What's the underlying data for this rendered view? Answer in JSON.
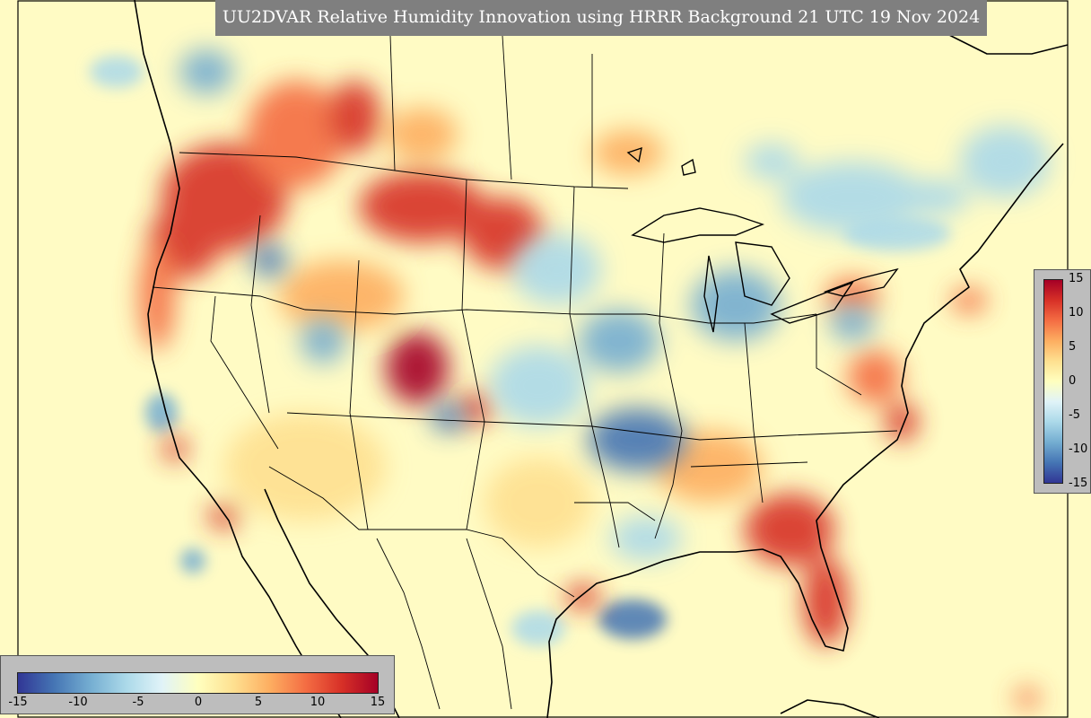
{
  "title": "UU2DVAR Relative Humidity Innovation using HRRR Background 21 UTC 19 Nov 2024",
  "colormap": {
    "name": "RdYlBu_r",
    "range": [
      -15,
      15
    ],
    "stops": [
      "#313695",
      "#4575b4",
      "#74add1",
      "#abd9e9",
      "#e0f3f8",
      "#ffffbf",
      "#fee090",
      "#fdae61",
      "#f46d43",
      "#d73027",
      "#a50026"
    ]
  },
  "right_colorbar": {
    "ticks": [
      "15",
      "10",
      "5",
      "0",
      "-5",
      "-10",
      "-15"
    ]
  },
  "bottom_colorbar": {
    "ticks": [
      "-15",
      "-10",
      "-5",
      "0",
      "5",
      "10",
      "15"
    ]
  },
  "colors": {
    "background_field": "#fffbc4",
    "title_banner": "#7f7f7f",
    "colorbar_panel": "#bdbdbd"
  }
}
